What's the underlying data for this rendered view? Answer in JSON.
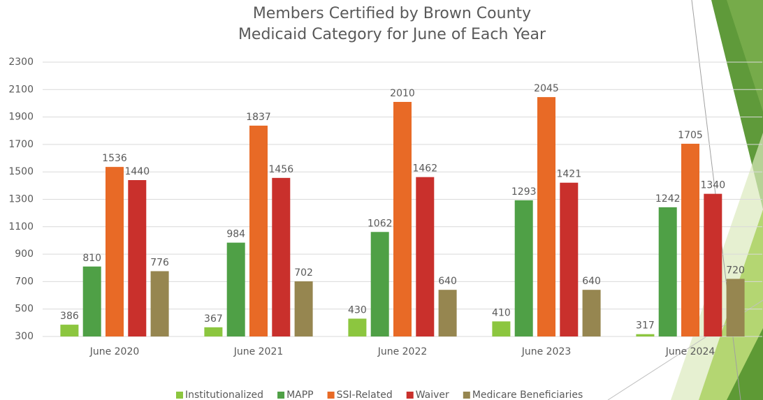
{
  "chart_data": {
    "type": "bar",
    "title": [
      "Members Certified by Brown County",
      "Medicaid Category for June of Each Year"
    ],
    "categories": [
      "June 2020",
      "June 2021",
      "June 2022",
      "June 2023",
      "June 2024"
    ],
    "series": [
      {
        "name": "Institutionalized",
        "color": "#8cc63f",
        "values": [
          386,
          367,
          430,
          410,
          317
        ]
      },
      {
        "name": "MAPP",
        "color": "#4fa046",
        "values": [
          810,
          984,
          1062,
          1293,
          1242
        ]
      },
      {
        "name": "SSI-Related",
        "color": "#e86a26",
        "values": [
          1536,
          1837,
          2010,
          2045,
          1705
        ]
      },
      {
        "name": "Waiver",
        "color": "#c9302c",
        "values": [
          1440,
          1456,
          1462,
          1421,
          1340
        ]
      },
      {
        "name": "Medicare Beneficiaries",
        "color": "#968650",
        "values": [
          776,
          702,
          640,
          640,
          720
        ]
      }
    ],
    "ylim": [
      300,
      2300
    ],
    "yticks": [
      300,
      500,
      700,
      900,
      1100,
      1300,
      1500,
      1700,
      1900,
      2100,
      2300
    ],
    "grid": true,
    "legend": "bottom"
  }
}
